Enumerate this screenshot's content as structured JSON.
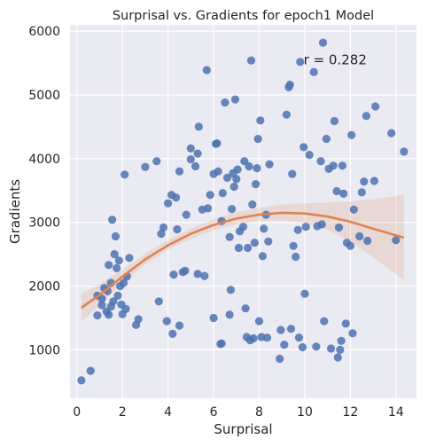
{
  "chart_data": {
    "type": "scatter",
    "title": "Surprisal vs. Gradients for epoch1 Model",
    "xlabel": "Surprisal",
    "ylabel": "Gradients",
    "xlim": [
      -0.3,
      14.9
    ],
    "ylim": [
      240,
      6100
    ],
    "xticks": [
      0,
      2,
      4,
      6,
      8,
      10,
      12,
      14
    ],
    "yticks": [
      1000,
      2000,
      3000,
      4000,
      5000,
      6000
    ],
    "xtick_labels": [
      "0",
      "2",
      "4",
      "6",
      "8",
      "10",
      "12",
      "14"
    ],
    "ytick_labels": [
      "1000",
      "2000",
      "3000",
      "4000",
      "5000",
      "6000"
    ],
    "grid": true,
    "annotation": "r = 0.282",
    "colors": {
      "background": "#eaeaf2",
      "grid": "#ffffff",
      "points": "#4c72b0",
      "fit_line": "#dd8452",
      "confidence_band": "#dd8452"
    },
    "points": [
      [
        0.2,
        520
      ],
      [
        0.6,
        670
      ],
      [
        0.9,
        1540
      ],
      [
        0.9,
        1850
      ],
      [
        1.1,
        1700
      ],
      [
        1.1,
        1800
      ],
      [
        1.2,
        1970
      ],
      [
        1.3,
        1600
      ],
      [
        1.35,
        1920
      ],
      [
        1.4,
        1550
      ],
      [
        1.4,
        2330
      ],
      [
        1.5,
        1680
      ],
      [
        1.5,
        2050
      ],
      [
        1.55,
        3040
      ],
      [
        1.6,
        1760
      ],
      [
        1.65,
        2500
      ],
      [
        1.7,
        2780
      ],
      [
        1.75,
        2280
      ],
      [
        1.8,
        1850
      ],
      [
        1.85,
        2400
      ],
      [
        1.9,
        2000
      ],
      [
        1.95,
        1710
      ],
      [
        2.0,
        1560
      ],
      [
        2.05,
        2050
      ],
      [
        2.1,
        3750
      ],
      [
        2.15,
        1640
      ],
      [
        2.2,
        2150
      ],
      [
        2.3,
        2440
      ],
      [
        2.6,
        1390
      ],
      [
        2.7,
        1480
      ],
      [
        3.0,
        3870
      ],
      [
        3.5,
        3960
      ],
      [
        3.6,
        1760
      ],
      [
        3.7,
        2820
      ],
      [
        3.8,
        2920
      ],
      [
        3.95,
        1450
      ],
      [
        4.0,
        3300
      ],
      [
        4.15,
        3430
      ],
      [
        4.2,
        1250
      ],
      [
        4.25,
        2180
      ],
      [
        4.35,
        3390
      ],
      [
        4.4,
        2890
      ],
      [
        4.5,
        1380
      ],
      [
        4.5,
        3800
      ],
      [
        4.65,
        2220
      ],
      [
        4.75,
        2240
      ],
      [
        4.8,
        3120
      ],
      [
        5.0,
        3990
      ],
      [
        5.0,
        4160
      ],
      [
        5.2,
        3880
      ],
      [
        5.3,
        4080
      ],
      [
        5.3,
        2190
      ],
      [
        5.35,
        4500
      ],
      [
        5.5,
        3200
      ],
      [
        5.6,
        2160
      ],
      [
        5.7,
        5390
      ],
      [
        5.75,
        3220
      ],
      [
        5.85,
        3430
      ],
      [
        6.0,
        1500
      ],
      [
        6.0,
        3760
      ],
      [
        6.1,
        4230
      ],
      [
        6.15,
        4240
      ],
      [
        6.2,
        3800
      ],
      [
        6.3,
        1090
      ],
      [
        6.35,
        1100
      ],
      [
        6.35,
        3020
      ],
      [
        6.4,
        3460
      ],
      [
        6.5,
        4880
      ],
      [
        6.6,
        3700
      ],
      [
        6.7,
        1550
      ],
      [
        6.7,
        2770
      ],
      [
        6.75,
        1940
      ],
      [
        6.8,
        3210
      ],
      [
        6.85,
        3770
      ],
      [
        6.9,
        3560
      ],
      [
        6.95,
        4930
      ],
      [
        7.0,
        3680
      ],
      [
        7.05,
        3830
      ],
      [
        7.1,
        2600
      ],
      [
        7.15,
        2860
      ],
      [
        7.3,
        2930
      ],
      [
        7.35,
        3960
      ],
      [
        7.4,
        1650
      ],
      [
        7.45,
        1200
      ],
      [
        7.5,
        2600
      ],
      [
        7.55,
        3880
      ],
      [
        7.6,
        1150
      ],
      [
        7.65,
        5540
      ],
      [
        7.7,
        3280
      ],
      [
        7.75,
        1180
      ],
      [
        7.8,
        2680
      ],
      [
        7.85,
        3600
      ],
      [
        7.9,
        3850
      ],
      [
        7.95,
        4310
      ],
      [
        8.0,
        1450
      ],
      [
        8.05,
        4600
      ],
      [
        8.1,
        1200
      ],
      [
        8.15,
        2470
      ],
      [
        8.2,
        2900
      ],
      [
        8.3,
        3120
      ],
      [
        8.35,
        1190
      ],
      [
        8.4,
        2700
      ],
      [
        8.45,
        3910
      ],
      [
        8.9,
        860
      ],
      [
        8.95,
        1310
      ],
      [
        9.1,
        1080
      ],
      [
        9.2,
        4690
      ],
      [
        9.3,
        5120
      ],
      [
        9.35,
        5160
      ],
      [
        9.4,
        1330
      ],
      [
        9.45,
        3760
      ],
      [
        9.5,
        2630
      ],
      [
        9.6,
        2460
      ],
      [
        9.7,
        2880
      ],
      [
        9.75,
        1190
      ],
      [
        9.8,
        5520
      ],
      [
        9.9,
        1040
      ],
      [
        9.95,
        4180
      ],
      [
        10.0,
        1880
      ],
      [
        10.05,
        2930
      ],
      [
        10.2,
        4060
      ],
      [
        10.4,
        5360
      ],
      [
        10.5,
        1050
      ],
      [
        10.55,
        2940
      ],
      [
        10.7,
        3960
      ],
      [
        10.75,
        2970
      ],
      [
        10.8,
        5820
      ],
      [
        10.85,
        1450
      ],
      [
        10.95,
        4310
      ],
      [
        11.05,
        3840
      ],
      [
        11.15,
        1020
      ],
      [
        11.25,
        3890
      ],
      [
        11.3,
        4590
      ],
      [
        11.4,
        3490
      ],
      [
        11.45,
        880
      ],
      [
        11.5,
        2920
      ],
      [
        11.55,
        1000
      ],
      [
        11.6,
        1140
      ],
      [
        11.65,
        3890
      ],
      [
        11.7,
        3450
      ],
      [
        11.8,
        1410
      ],
      [
        11.85,
        2680
      ],
      [
        12.0,
        2630
      ],
      [
        12.05,
        4370
      ],
      [
        12.1,
        1260
      ],
      [
        12.15,
        3200
      ],
      [
        12.4,
        2780
      ],
      [
        12.5,
        3470
      ],
      [
        12.6,
        3640
      ],
      [
        12.7,
        4670
      ],
      [
        12.75,
        2710
      ],
      [
        13.05,
        3650
      ],
      [
        13.1,
        4820
      ],
      [
        13.8,
        4400
      ],
      [
        14.0,
        2720
      ],
      [
        14.35,
        4110
      ]
    ],
    "fit_line": [
      [
        0.2,
        1660
      ],
      [
        1,
        1860
      ],
      [
        2,
        2150
      ],
      [
        3,
        2420
      ],
      [
        4,
        2640
      ],
      [
        5,
        2820
      ],
      [
        6,
        2960
      ],
      [
        7,
        3060
      ],
      [
        8,
        3120
      ],
      [
        9,
        3150
      ],
      [
        10,
        3140
      ],
      [
        11,
        3090
      ],
      [
        12,
        3010
      ],
      [
        13,
        2900
      ],
      [
        14.35,
        2760
      ]
    ],
    "confidence_band": [
      [
        0.2,
        1440,
        1880
      ],
      [
        1,
        1700,
        2030
      ],
      [
        2,
        2050,
        2260
      ],
      [
        3,
        2340,
        2510
      ],
      [
        4,
        2570,
        2720
      ],
      [
        5,
        2740,
        2900
      ],
      [
        6,
        2880,
        3050
      ],
      [
        7,
        2970,
        3160
      ],
      [
        8,
        3020,
        3230
      ],
      [
        9,
        3030,
        3280
      ],
      [
        10,
        2990,
        3300
      ],
      [
        11,
        2880,
        3310
      ],
      [
        12,
        2700,
        3330
      ],
      [
        13,
        2450,
        3360
      ],
      [
        14.35,
        2090,
        3430
      ]
    ]
  }
}
